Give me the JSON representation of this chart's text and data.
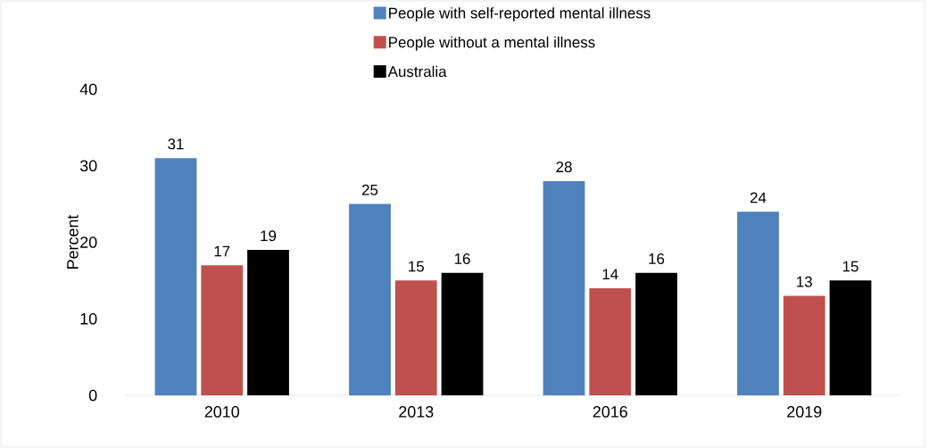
{
  "chart_data": {
    "type": "bar",
    "ylabel": "Percent",
    "categories": [
      "2010",
      "2013",
      "2016",
      "2019"
    ],
    "series": [
      {
        "name": "People with self-reported mental illness",
        "color": "#4f81bd",
        "values": [
          31,
          25,
          28,
          24
        ]
      },
      {
        "name": "People without a mental illness",
        "color": "#c0504d",
        "values": [
          17,
          15,
          14,
          13
        ]
      },
      {
        "name": "Australia",
        "color": "#000000",
        "values": [
          19,
          16,
          16,
          15
        ]
      }
    ],
    "ylim": [
      0,
      40
    ],
    "yticks": [
      0,
      10,
      20,
      30,
      40
    ],
    "data_labels": true,
    "legend": "top"
  }
}
